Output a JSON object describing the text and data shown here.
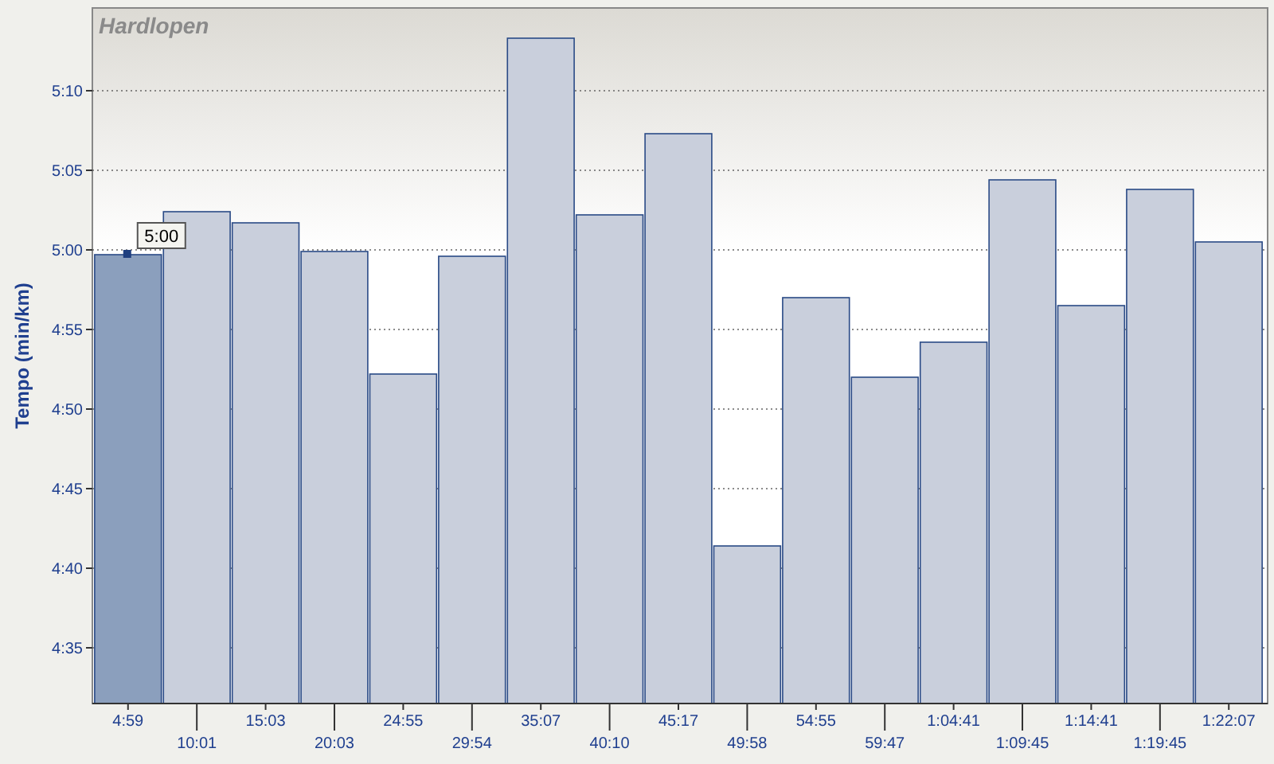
{
  "chart_data": {
    "type": "bar",
    "title": "Hardlopen",
    "ylabel": "Tempo (min/km)",
    "categories": [
      "4:59",
      "10:01",
      "15:03",
      "20:03",
      "24:55",
      "29:54",
      "35:07",
      "40:10",
      "45:17",
      "49:58",
      "54:55",
      "59:47",
      "1:04:41",
      "1:09:45",
      "1:14:41",
      "1:19:45",
      "1:22:07"
    ],
    "values": [
      299.7,
      302.4,
      301.7,
      299.9,
      292.2,
      299.6,
      313.3,
      302.2,
      307.3,
      281.4,
      297,
      292,
      294.2,
      304.4,
      296.5,
      303.8,
      300.5
    ],
    "colors": [
      "#8b9fbd",
      "#c9cfdc",
      "#c9cfdc",
      "#c9cfdc",
      "#c9cfdc",
      "#c9cfdc",
      "#c9cfdc",
      "#c9cfdc",
      "#c9cfdc",
      "#c9cfdc",
      "#c9cfdc",
      "#c9cfdc",
      "#c9cfdc",
      "#c9cfdc",
      "#c9cfdc",
      "#c9cfdc",
      "#c9cfdc"
    ],
    "ylim": [
      271.5,
      315.2
    ],
    "yticks": [
      {
        "value": 275,
        "label": "4:35"
      },
      {
        "value": 280,
        "label": "4:40"
      },
      {
        "value": 285,
        "label": "4:45"
      },
      {
        "value": 290,
        "label": "4:50"
      },
      {
        "value": 295,
        "label": "4:55"
      },
      {
        "value": 300,
        "label": "5:00"
      },
      {
        "value": 305,
        "label": "5:05"
      },
      {
        "value": 310,
        "label": "5:10"
      }
    ],
    "grid": "y",
    "annotations": [
      {
        "text": "5:00",
        "x": "4:59",
        "y": 299.7
      }
    ]
  }
}
